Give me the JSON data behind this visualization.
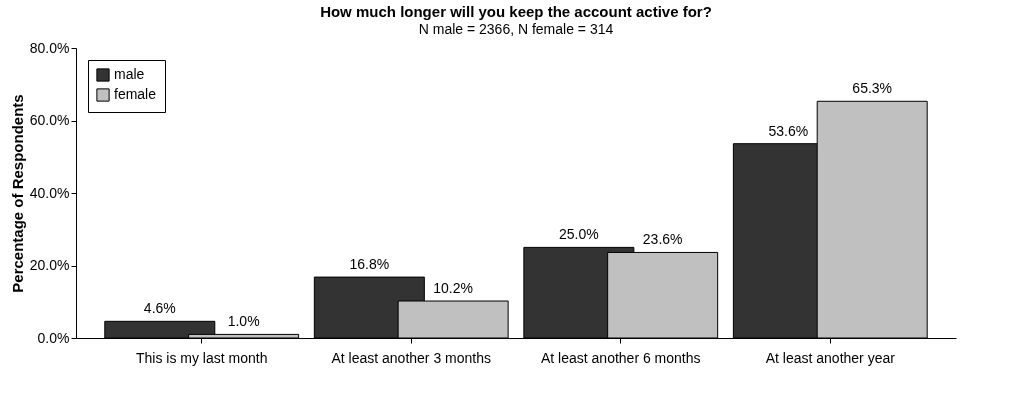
{
  "chart_data": {
    "type": "bar",
    "title": "How much longer will you keep the account active for?",
    "subtitle": "N male = 2366, N female = 314",
    "ylabel": "Percentage of Respondents",
    "categories": [
      "This is my last month",
      "At least another 3 months",
      "At least another 6 months",
      "At least another year"
    ],
    "series": [
      {
        "name": "male",
        "color": "#333333",
        "values": [
          4.6,
          16.8,
          25.0,
          53.6
        ],
        "value_labels": [
          "4.6%",
          "16.8%",
          "25.0%",
          "53.6%"
        ]
      },
      {
        "name": "female",
        "color": "#c0c0c0",
        "values": [
          1.0,
          10.2,
          23.6,
          65.3
        ],
        "value_labels": [
          "1.0%",
          "10.2%",
          "23.6%",
          "65.3%"
        ]
      }
    ],
    "ylim": [
      0,
      80
    ],
    "yticks": [
      {
        "value": 0,
        "label": "0.0%"
      },
      {
        "value": 20,
        "label": "20.0%"
      },
      {
        "value": 40,
        "label": "40.0%"
      },
      {
        "value": 60,
        "label": "60.0%"
      },
      {
        "value": 80,
        "label": "80.0%"
      }
    ],
    "grid": false,
    "legend": "top left"
  }
}
